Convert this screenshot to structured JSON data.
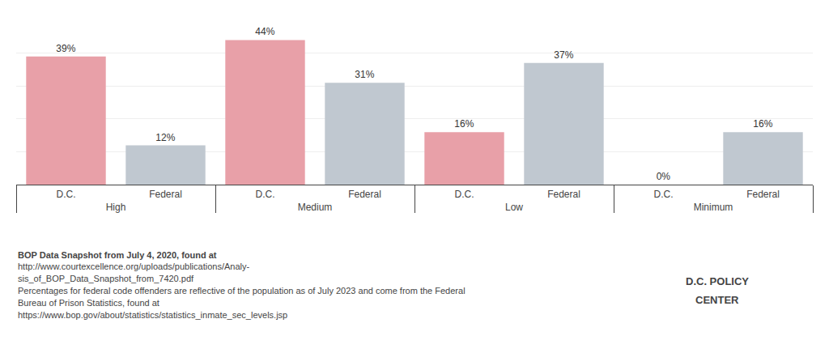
{
  "chart_data": {
    "type": "bar",
    "categories": [
      "High",
      "Medium",
      "Low",
      "Minimum"
    ],
    "series": [
      {
        "name": "D.C.",
        "color": "#E8A0A8",
        "values": [
          39,
          44,
          16,
          0
        ],
        "value_labels": [
          "39%",
          "44%",
          "16%",
          "0%"
        ]
      },
      {
        "name": "Federal",
        "color": "#C0C8D0",
        "values": [
          12,
          31,
          37,
          16
        ],
        "value_labels": [
          "12%",
          "31%",
          "37%",
          "16%"
        ]
      }
    ],
    "ylim": [
      0,
      50
    ],
    "yticks": [
      0,
      10,
      20,
      30,
      40,
      50
    ],
    "grid": true,
    "tick_labels": "x",
    "data_labels": true,
    "annotations": [
      "BOP Data Snapshot from July 4, 2020, found at ",
      "http://www.courtexcellence.org/uploads/publications/Analy-",
      "sis_of_BOP_Data_Snapshot_from_7420.pdf",
      "Percentages for federal code offenders are reflective of the population as of July 2023 and come from the Federal",
      "Bureau of Prison Statistics, found at ",
      "https://www.bop.gov/about/statistics/statistics_inmate_sec_levels.jsp",
      "D.C. POLICY",
      "CENTER"
    ]
  }
}
